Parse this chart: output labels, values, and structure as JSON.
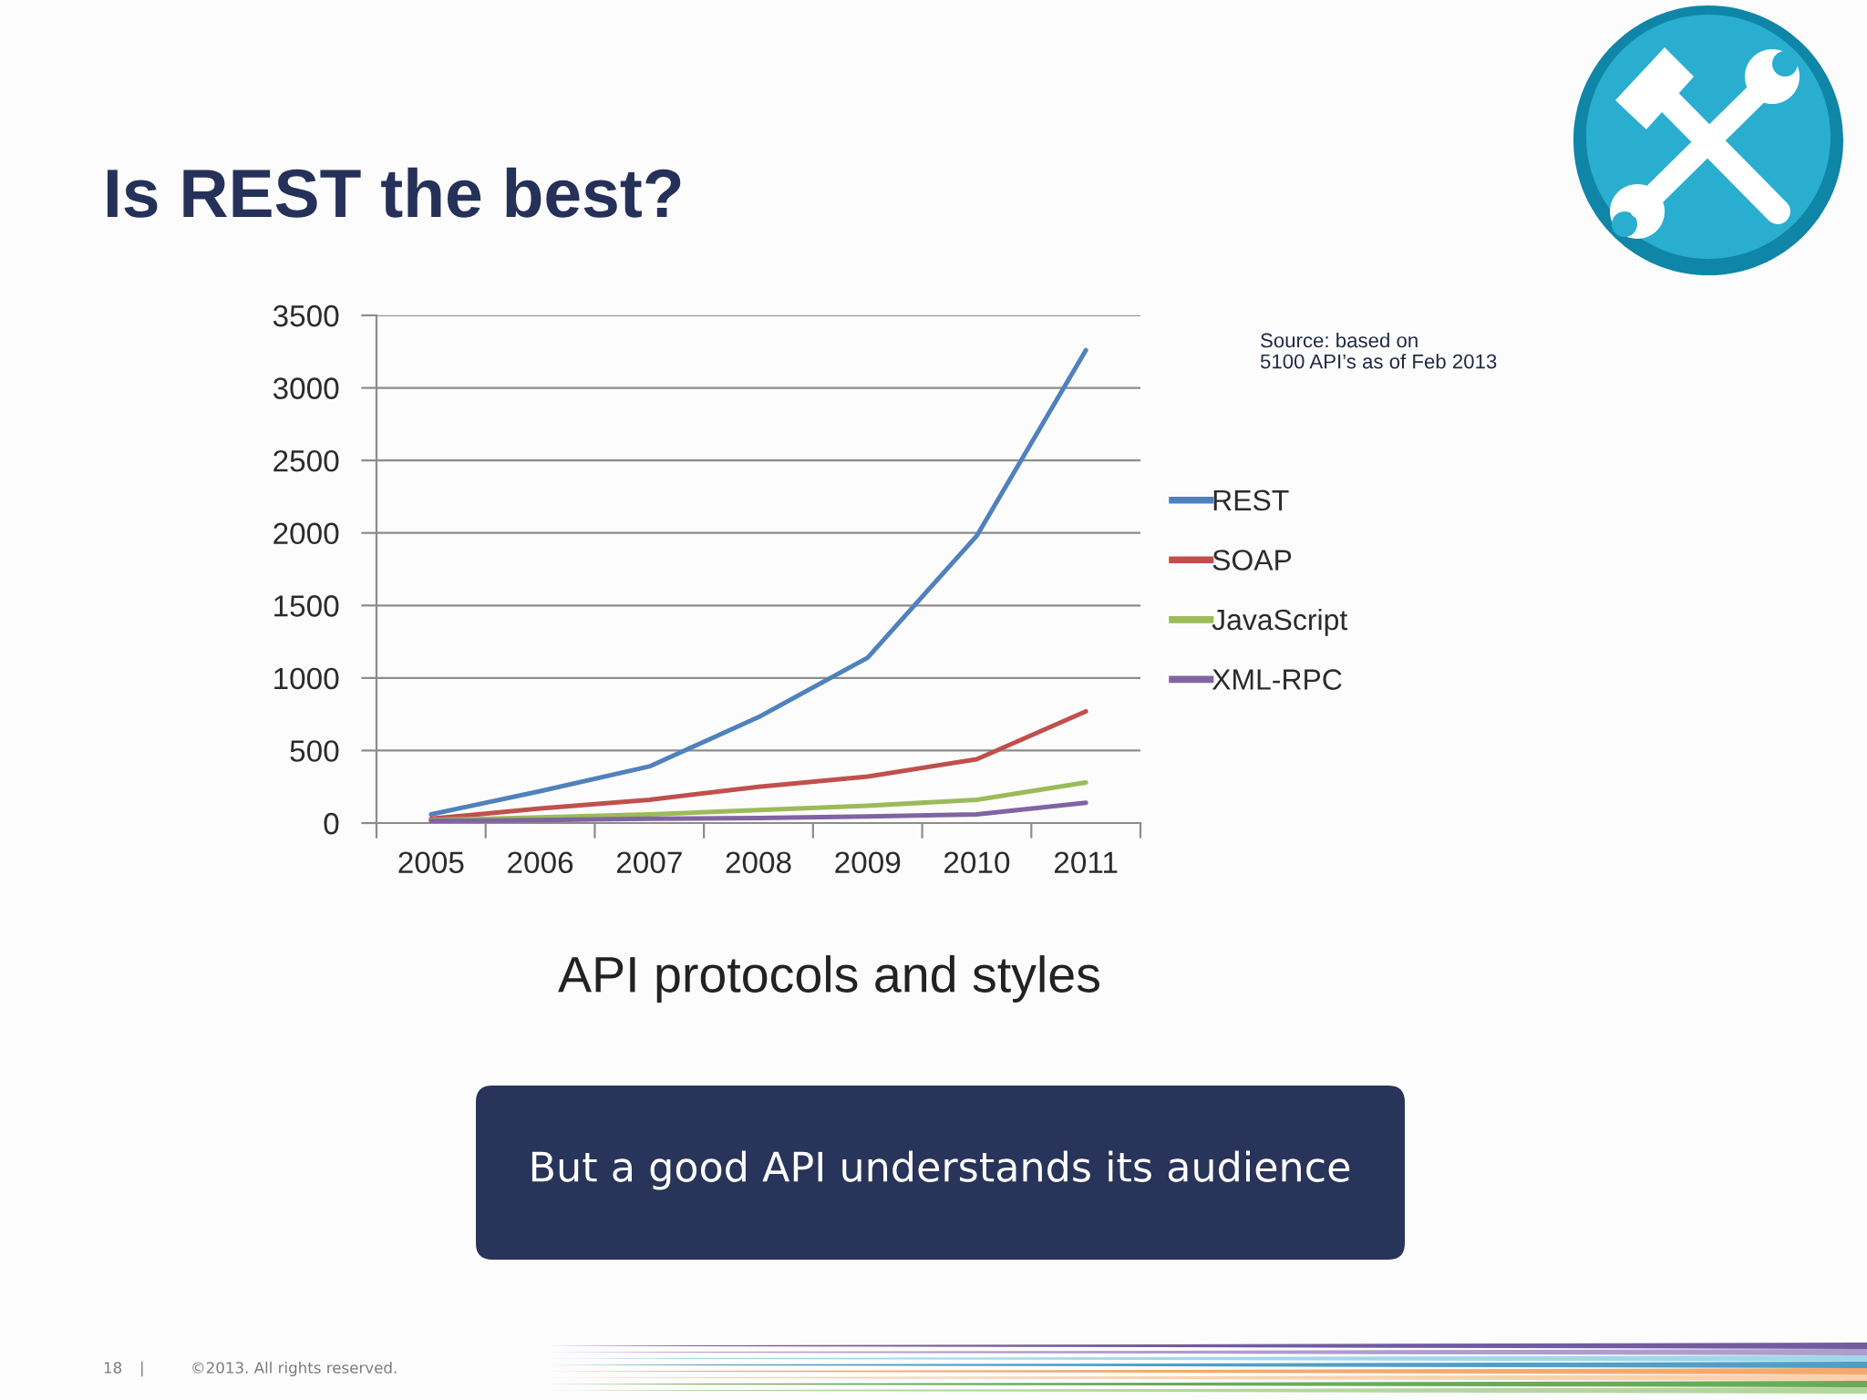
{
  "chart_data": {
    "type": "line",
    "title": "Is REST the best?",
    "subtitle": "API protocols and styles",
    "categories": [
      "2005",
      "2006",
      "2007",
      "2008",
      "2009",
      "2010",
      "2011"
    ],
    "series": [
      {
        "name": "REST",
        "color": "#4f81bd",
        "values": [
          60,
          220,
          390,
          730,
          1140,
          1980,
          3260
        ]
      },
      {
        "name": "SOAP",
        "color": "#c0504d",
        "values": [
          30,
          100,
          160,
          250,
          320,
          440,
          770
        ]
      },
      {
        "name": "JavaScript",
        "color": "#9bbb59",
        "values": [
          20,
          40,
          60,
          90,
          120,
          160,
          280
        ]
      },
      {
        "name": "XML-RPC",
        "color": "#8064a2",
        "values": [
          15,
          20,
          30,
          35,
          45,
          60,
          140
        ]
      }
    ],
    "ylim": [
      0,
      3500
    ],
    "yticks": [
      0,
      500,
      1000,
      1500,
      2000,
      2500,
      3000,
      3500
    ],
    "grid": "y",
    "legend": "right",
    "marker": "none",
    "line_style": "solid",
    "annotations": [
      "Source: based on\n5100 API’s as of Feb 2013",
      "But a good API understands its audience",
      "18",
      "|",
      "©2013. All rights reserved."
    ]
  }
}
